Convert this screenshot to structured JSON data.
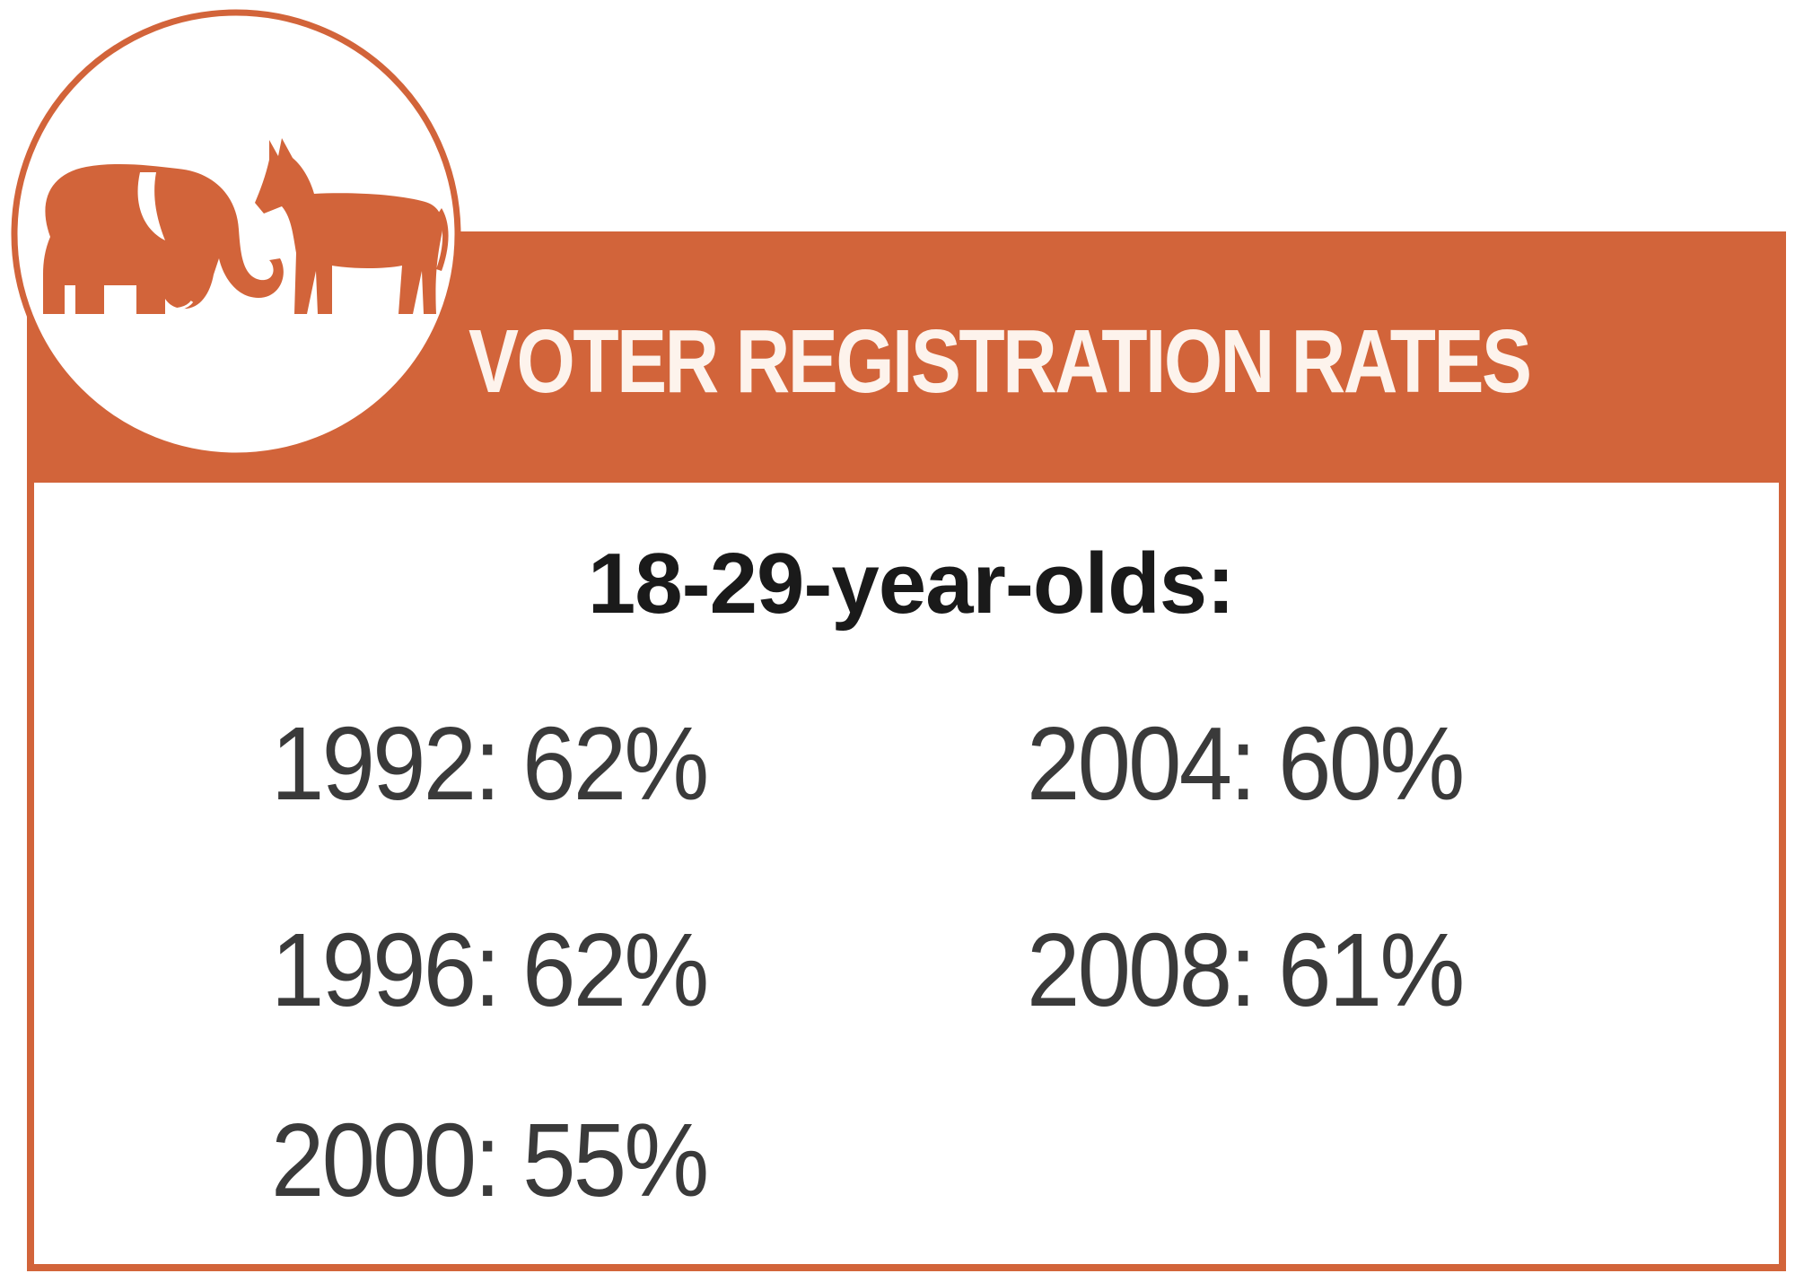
{
  "header": {
    "title": "VOTER REGISTRATION RATES",
    "emblem_icon": "elephant-and-donkey-icon",
    "accent_color": "#D2643A"
  },
  "group_label": "18-29-year-olds:",
  "rates": [
    {
      "year": "1992",
      "value": "62%",
      "text": "1992: 62%"
    },
    {
      "year": "1996",
      "value": "62%",
      "text": "1996: 62%"
    },
    {
      "year": "2000",
      "value": "55%",
      "text": "2000: 55%"
    },
    {
      "year": "2004",
      "value": "60%",
      "text": "2004: 60%"
    },
    {
      "year": "2008",
      "value": "61%",
      "text": "2008: 61%"
    }
  ]
}
